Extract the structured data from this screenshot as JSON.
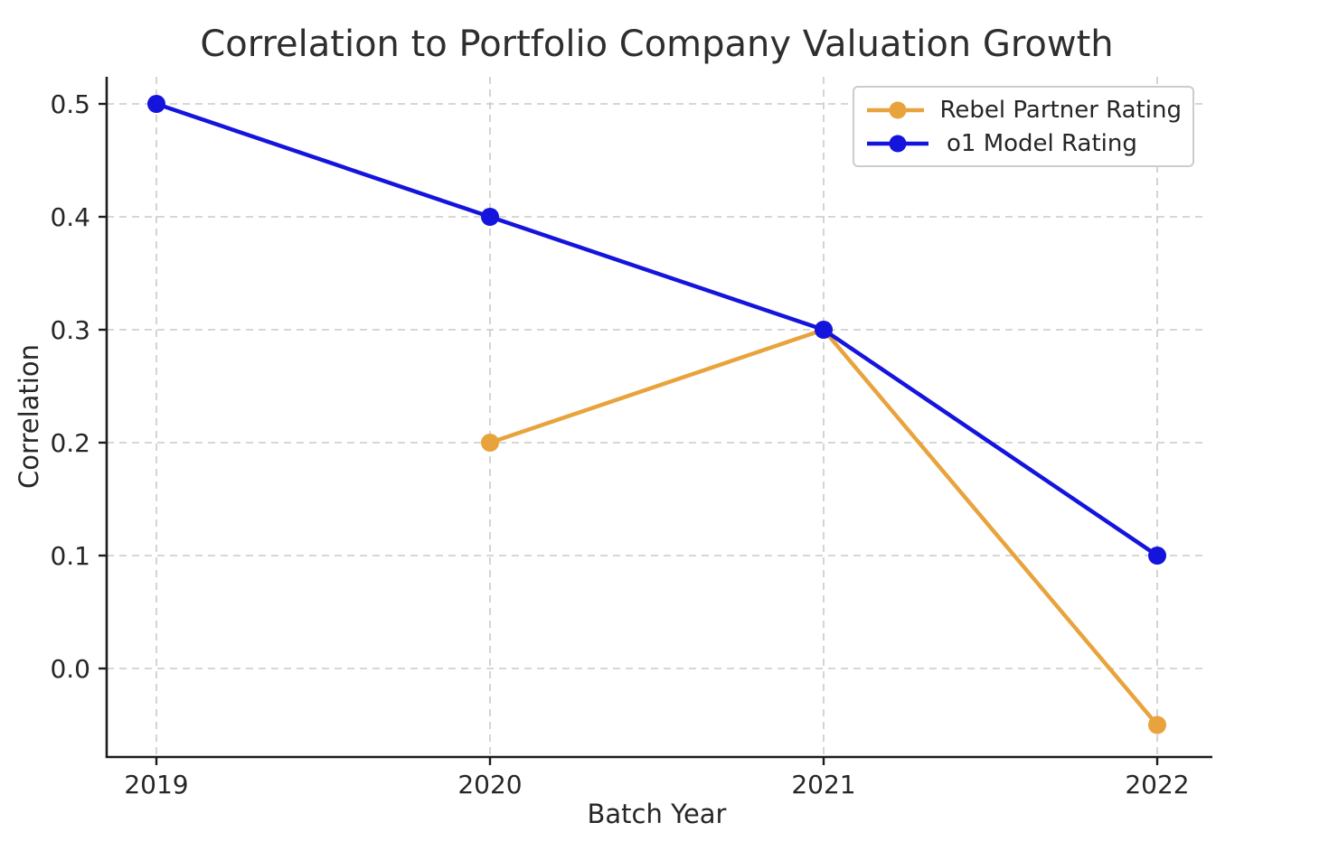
{
  "chart_data": {
    "type": "line",
    "title": "Correlation to Portfolio Company Valuation Growth",
    "xlabel": "Batch Year",
    "ylabel": "Correlation",
    "categories": [
      2019,
      2020,
      2021,
      2022
    ],
    "x_tick_labels": [
      "2019",
      "2020",
      "2021",
      "2022"
    ],
    "y_ticks": [
      0.0,
      0.1,
      0.2,
      0.3,
      0.4,
      0.5
    ],
    "y_tick_labels": [
      "0.0",
      "0.1",
      "0.2",
      "0.3",
      "0.4",
      "0.5"
    ],
    "ylim": [
      -0.078,
      0.524
    ],
    "grid": true,
    "grid_style": "dashed",
    "legend_position": "upper right",
    "series": [
      {
        "name": "Rebel Partner Rating",
        "color": "#e8a33d",
        "x": [
          2020,
          2021,
          2022
        ],
        "values": [
          0.2,
          0.3,
          -0.05
        ]
      },
      {
        "name": "o1 Model Rating",
        "color": "#1414dd",
        "x": [
          2019,
          2020,
          2021,
          2022
        ],
        "values": [
          0.5,
          0.4,
          0.3,
          0.1
        ]
      }
    ],
    "colors": {
      "grid": "#c9c9c9",
      "spine": "#1c1c1c",
      "tick_text": "#262626",
      "title_text": "#2e2e2e",
      "background": "#ffffff"
    }
  }
}
